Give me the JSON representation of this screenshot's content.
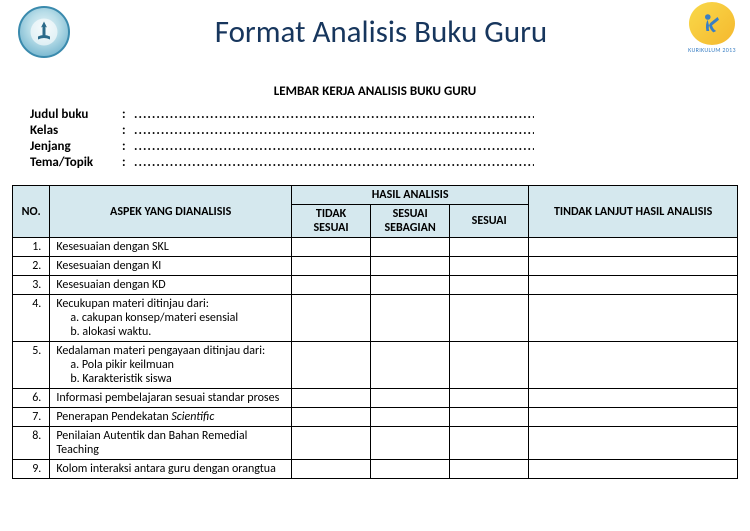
{
  "header": {
    "title": "Format Analisis Buku Guru",
    "logo_right_label": "KURIKULUM 2013"
  },
  "subtitle": "LEMBAR KERJA ANALISIS BUKU GURU",
  "meta": {
    "fields": [
      {
        "label": "Judul buku",
        "dots": "..............................................................................................."
      },
      {
        "label": "Kelas",
        "dots": "..............................................................................................."
      },
      {
        "label": "Jenjang",
        "dots": "..............................................................................................."
      },
      {
        "label": "Tema/Topik",
        "dots": "..............................................................................................."
      }
    ]
  },
  "table": {
    "headers": {
      "no": "NO.",
      "aspek": "ASPEK YANG DIANALISIS",
      "hasil": "HASIL ANALISIS",
      "tidak": "TIDAK SESUAI",
      "sebagian": "SESUAI SEBAGIAN",
      "sesuai": "SESUAI",
      "tindak": "TINDAK LANJUT HASIL ANALISIS"
    },
    "header_bg": "#d5e8ee",
    "border_color": "#000000",
    "rows": [
      {
        "no": "1.",
        "aspek": "Kesesuaian dengan SKL"
      },
      {
        "no": "2.",
        "aspek": "Kesesuaian dengan KI"
      },
      {
        "no": "3.",
        "aspek": "Kesesuaian dengan KD"
      },
      {
        "no": "4.",
        "aspek": "Kecukupan materi ditinjau dari:",
        "subs": [
          "a.  cakupan  konsep/materi esensial",
          "b.  alokasi waktu."
        ]
      },
      {
        "no": "5.",
        "aspek": "Kedalaman materi pengayaan ditinjau dari:",
        "subs": [
          "a.  Pola pikir keilmuan",
          "b.  Karakteristik siswa"
        ]
      },
      {
        "no": "6.",
        "aspek": "Informasi pembelajaran sesuai standar proses"
      },
      {
        "no": "7.",
        "aspek_html": "Penerapan Pendekatan <i>Scientific</i>"
      },
      {
        "no": "8.",
        "aspek": "Penilaian Autentik dan Bahan Remedial Teaching"
      },
      {
        "no": "9.",
        "aspek": "Kolom interaksi antara guru dengan orangtua"
      }
    ]
  },
  "colors": {
    "title_color": "#17365d",
    "background": "#ffffff"
  }
}
